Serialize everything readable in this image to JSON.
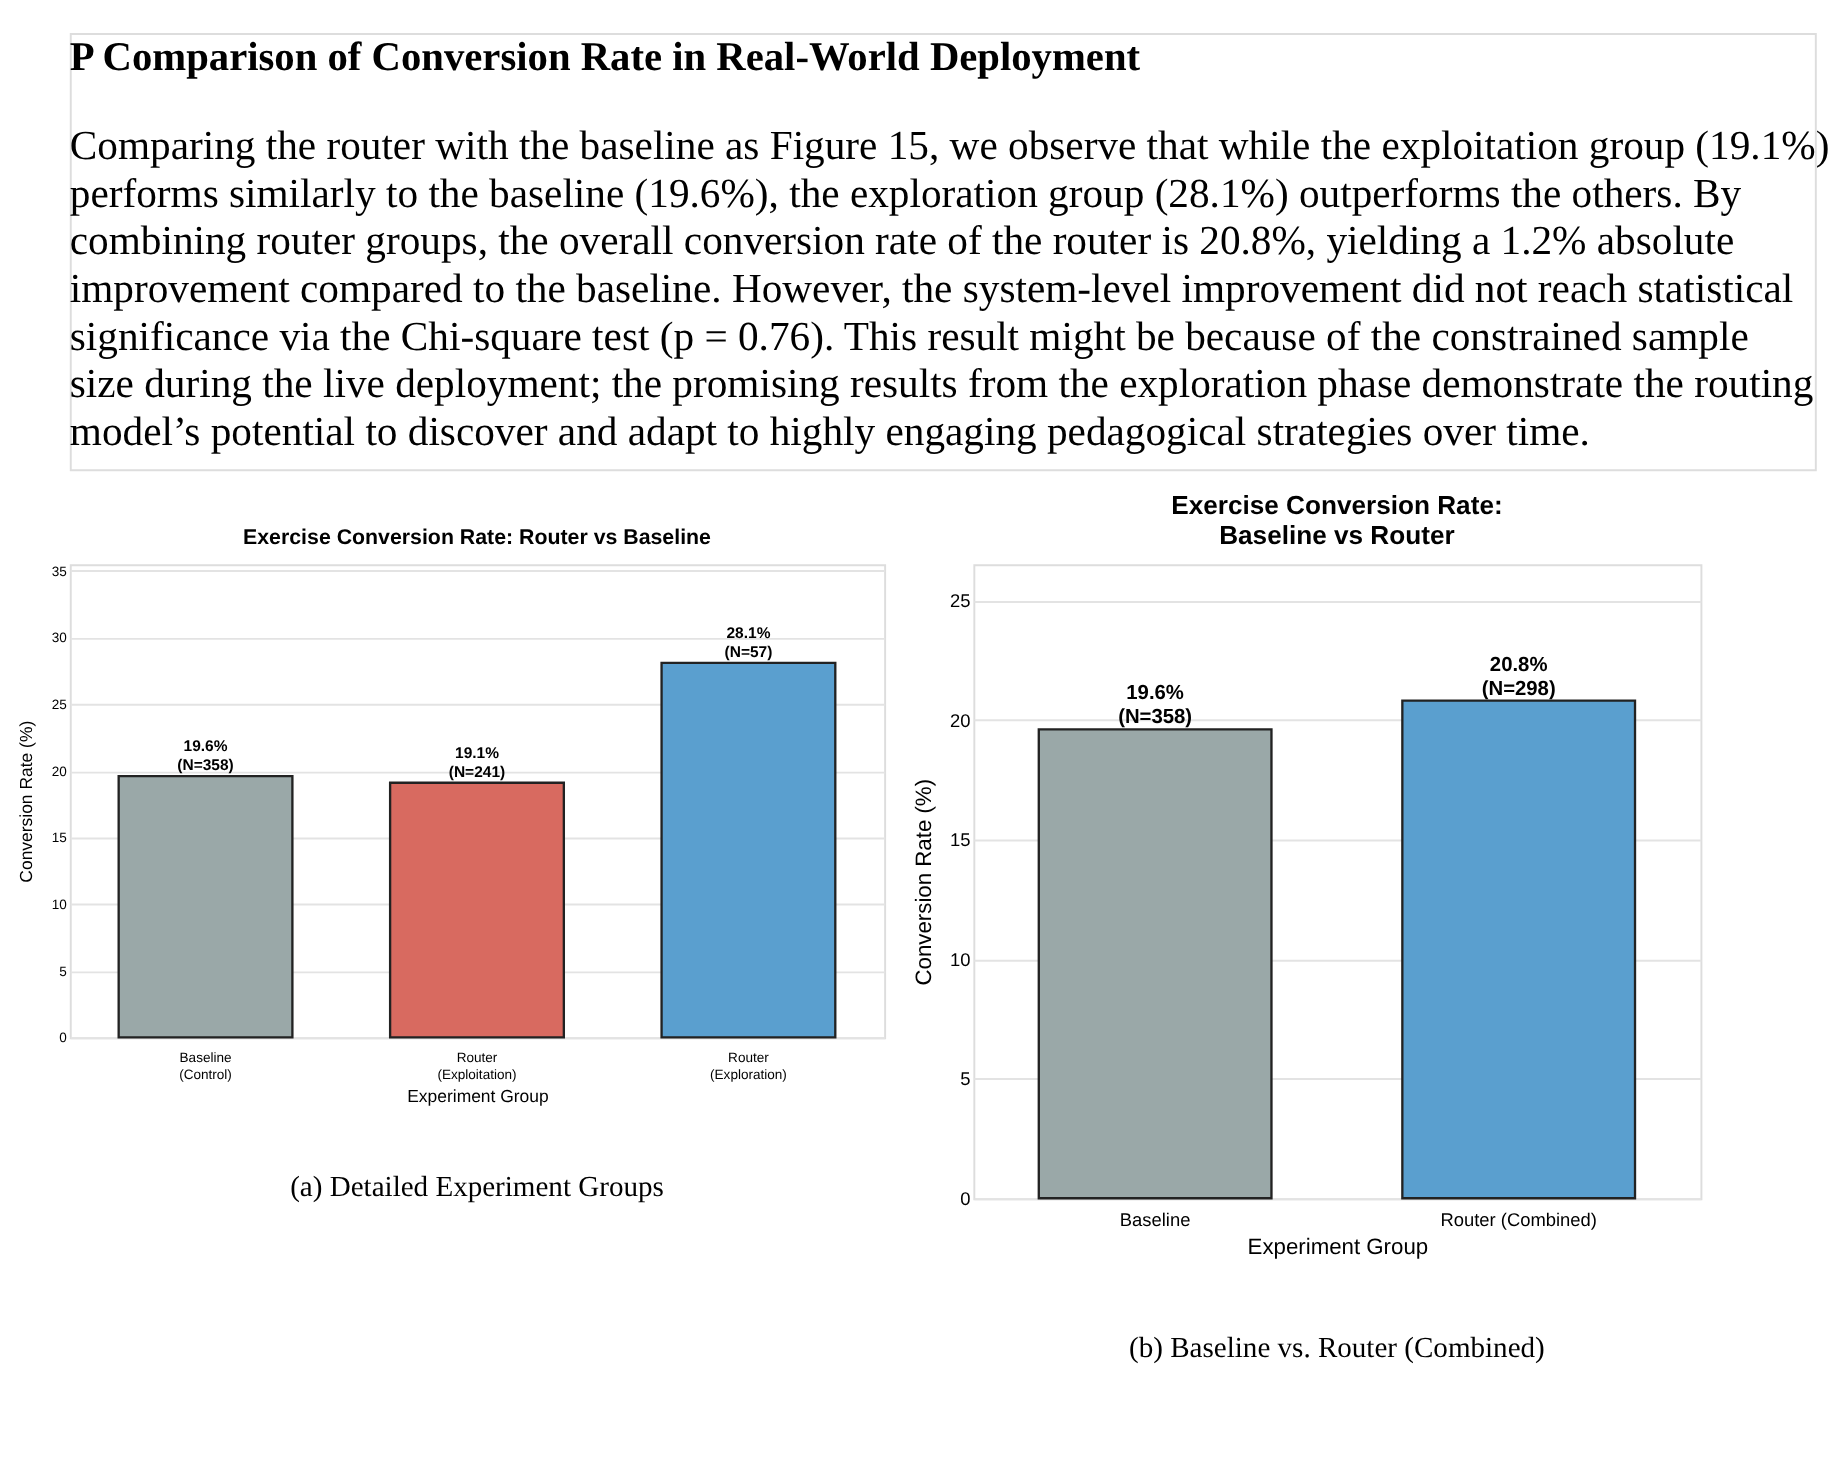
{
  "chart_data": [
    {
      "type": "other",
      "title": "P    Comparison of Conversion Rate in Real-World Deployment",
      "annotations": [
        "Comparing the router with the baseline as Figure 15, we observe that while the exploitation group (19.1%)",
        "performs similarly to the baseline (19.6%), the exploration group (28.1%) outperforms the others. By",
        "combining router groups, the overall conversion rate of the router is 20.8%, yielding a 1.2% absolute",
        "improvement compared to the baseline. However, the system-level improvement did not reach statistical",
        "significance via the Chi-square test (p = 0.76). This result might be because of the constrained sample",
        "size during the live deployment; the promising results from the exploration phase demonstrate the routing",
        "model’s potential to discover and adapt to highly engaging pedagogical strategies over time."
      ]
    },
    {
      "type": "bar",
      "title": "Exercise Conversion Rate: Router vs Baseline",
      "xlabel": "Experiment Group",
      "ylabel": "Conversion Rate (%)",
      "categories": [
        "Baseline\n(Control)",
        "Router\n(Exploitation)",
        "Router\n(Exploration)"
      ],
      "values": [
        19.6,
        19.1,
        28.1
      ],
      "colors": [
        "#9aa8a8",
        "#d86a60",
        "#5a9fcf"
      ],
      "value_labels": [
        "19.6%\n(N=358)",
        "19.1%\n(N=241)",
        "28.1%\n(N=57)"
      ],
      "ylim": [
        0,
        35.5
      ],
      "yticks": [
        0,
        5,
        10,
        15,
        20,
        25,
        30,
        35
      ],
      "grid": "y",
      "annotations": [
        "(a) Detailed Experiment Groups"
      ]
    },
    {
      "type": "bar",
      "title": "Exercise Conversion Rate:\nBaseline vs Router",
      "xlabel": "Experiment Group",
      "ylabel": "Conversion Rate (%)",
      "categories": [
        "Baseline",
        "Router (Combined)"
      ],
      "values": [
        19.6,
        20.8
      ],
      "colors": [
        "#9aa8a8",
        "#5a9fcf"
      ],
      "value_labels": [
        "19.6%\n(N=358)",
        "20.8%\n(N=298)"
      ],
      "ylim": [
        0,
        26.5
      ],
      "yticks": [
        0,
        5,
        10,
        15,
        20,
        25
      ],
      "grid": "y",
      "annotations": [
        "(b) Baseline vs. Router (Combined)"
      ]
    }
  ]
}
